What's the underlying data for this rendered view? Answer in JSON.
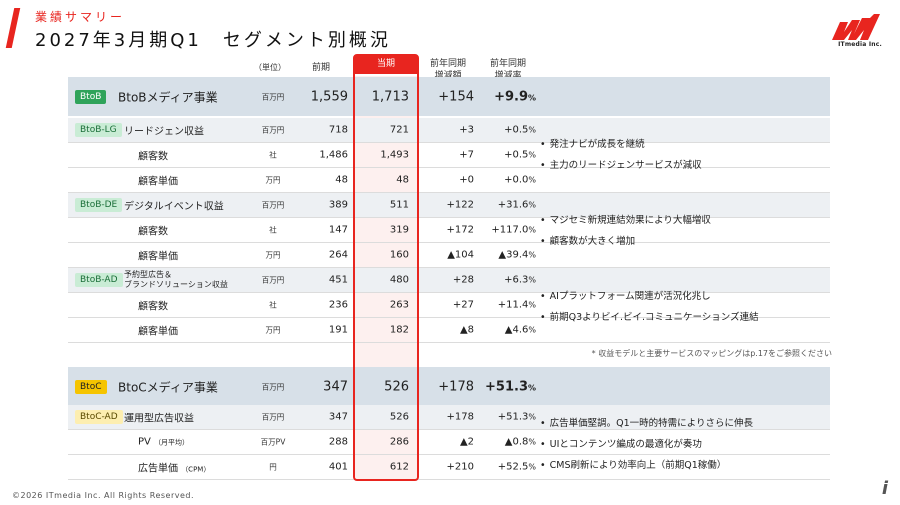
{
  "header": {
    "subtitle": "業績サマリー",
    "title": "2027年3月期Q1　セグメント別概況",
    "logo_text": "ITmedia Inc.",
    "logo_icon": "itmedia-logo-icon"
  },
  "columns": {
    "unit": "（単位）",
    "prev": "前期",
    "cur": "当期",
    "diff": "前年同期\n増減額",
    "rate": "前年同期\n増減率"
  },
  "rows": [
    {
      "badge": "BtoB",
      "name": "BtoBメディア事業",
      "unit": "百万円",
      "prev": "1,559",
      "cur": "1,713",
      "diff": "+154",
      "rate": "+9.9",
      "pct": "%"
    },
    {
      "badge": "BtoB-LG",
      "name": "リードジェン収益",
      "unit": "百万円",
      "prev": "718",
      "cur": "721",
      "diff": "+3",
      "rate": "+0.5",
      "pct": "%"
    },
    {
      "name": "顧客数",
      "unit": "社",
      "prev": "1,486",
      "cur": "1,493",
      "diff": "+7",
      "rate": "+0.5",
      "pct": "%"
    },
    {
      "name": "顧客単価",
      "unit": "万円",
      "prev": "48",
      "cur": "48",
      "diff": "+0",
      "rate": "+0.0",
      "pct": "%"
    },
    {
      "badge": "BtoB-DE",
      "name": "デジタルイベント収益",
      "unit": "百万円",
      "prev": "389",
      "cur": "511",
      "diff": "+122",
      "rate": "+31.6",
      "pct": "%"
    },
    {
      "name": "顧客数",
      "unit": "社",
      "prev": "147",
      "cur": "319",
      "diff": "+172",
      "rate": "+117.0",
      "pct": "%"
    },
    {
      "name": "顧客単価",
      "unit": "万円",
      "prev": "264",
      "cur": "160",
      "diff": "▲104",
      "rate": "▲39.4",
      "pct": "%"
    },
    {
      "badge": "BtoB-AD",
      "name_line1": "予約型広告＆",
      "name_line2": "ブランドソリューション収益",
      "unit": "百万円",
      "prev": "451",
      "cur": "480",
      "diff": "+28",
      "rate": "+6.3",
      "pct": "%"
    },
    {
      "name": "顧客数",
      "unit": "社",
      "prev": "236",
      "cur": "263",
      "diff": "+27",
      "rate": "+11.4",
      "pct": "%"
    },
    {
      "name": "顧客単価",
      "unit": "万円",
      "prev": "191",
      "cur": "182",
      "diff": "▲8",
      "rate": "▲4.6",
      "pct": "%"
    },
    {
      "badge": "BtoC",
      "name": "BtoCメディア事業",
      "unit": "百万円",
      "prev": "347",
      "cur": "526",
      "diff": "+178",
      "rate": "+51.3",
      "pct": "%"
    },
    {
      "badge": "BtoC-AD",
      "name": "運用型広告収益",
      "unit": "百万円",
      "prev": "347",
      "cur": "526",
      "diff": "+178",
      "rate": "+51.3",
      "pct": "%"
    },
    {
      "name": "PV",
      "name_small": "（月平均）",
      "unit": "百万PV",
      "prev": "288",
      "cur": "286",
      "diff": "▲2",
      "rate": "▲0.8",
      "pct": "%"
    },
    {
      "name": "広告単価",
      "name_small": "（CPM）",
      "unit": "円",
      "prev": "401",
      "cur": "612",
      "diff": "+210",
      "rate": "+52.5",
      "pct": "%"
    }
  ],
  "notes": {
    "lg": [
      "発注ナビが成長を継続",
      "主力のリードジェンサービスが減収"
    ],
    "de": [
      "マジセミ新規連結効果により大幅増収",
      "顧客数が大きく増加"
    ],
    "ad": [
      "AIプラットフォーム関連が活況化兆し",
      "前期Q3よりビイ.ビイ.コミュニケーションズ連結"
    ],
    "btoc": [
      "広告単価堅調。Q1一時的特需によりさらに伸長",
      "UIとコンテンツ編成の最適化が奏功",
      "CMS刷新により効率向上（前期Q1稼働）"
    ]
  },
  "footnote": "* 収益モデルと主要サービスのマッピングはp.17をご参照ください",
  "copyright": "©2026 ITmedia Inc. All Rights Reserved.",
  "corner_mark": "i",
  "colors": {
    "accent": "#e8251f",
    "btob": "#2fa35a",
    "btoc": "#f5c400",
    "seg_row": "#d7e0e8"
  }
}
